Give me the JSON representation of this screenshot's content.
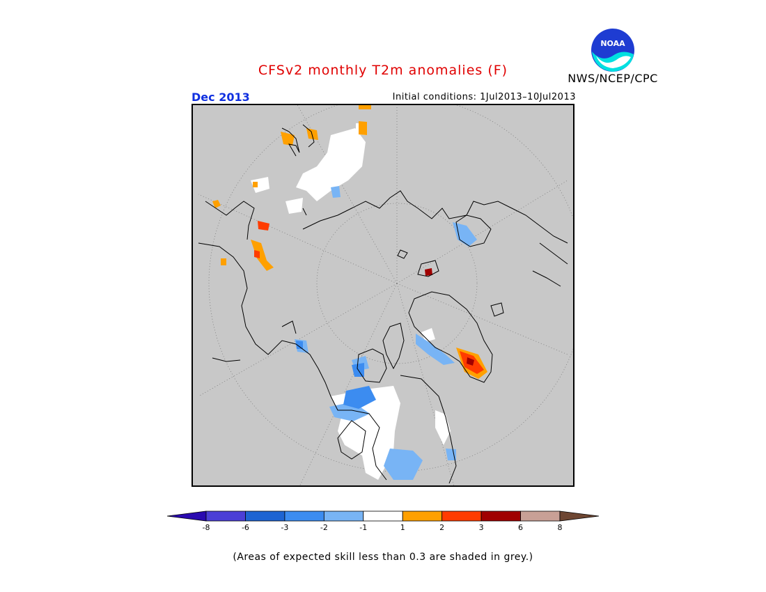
{
  "title": "CFSv2 monthly T2m anomalies (F)",
  "agency": "NWS/NCEP/CPC",
  "logo_text": "NOAA",
  "month_label": "Dec 2013",
  "initial_conditions": "Initial conditions: 1Jul2013–10Jul2013",
  "footnote": "(Areas of expected skill less than 0.3 are shaded in grey.)",
  "colors": {
    "background_grey": "#c8c8c8",
    "title_red": "#e00000",
    "month_blue": "#1030e0"
  },
  "legend": {
    "bins": [
      {
        "color": "#2a0ab0"
      },
      {
        "color": "#4b3fd6"
      },
      {
        "color": "#1e64d2"
      },
      {
        "color": "#3c8cf0"
      },
      {
        "color": "#78b4f5"
      },
      {
        "color": "#ffffff"
      },
      {
        "color": "#ffa000"
      },
      {
        "color": "#ff3c00"
      },
      {
        "color": "#a00000"
      },
      {
        "color": "#c8a096"
      },
      {
        "color": "#6e4632"
      }
    ],
    "tick_labels": [
      "-8",
      "-6",
      "-3",
      "-2",
      "-1",
      "1",
      "2",
      "3",
      "6",
      "8"
    ]
  }
}
